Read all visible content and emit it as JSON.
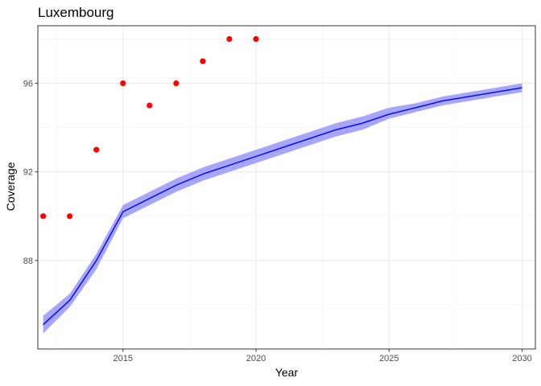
{
  "chart_data": {
    "type": "line",
    "title": "Luxembourg",
    "xlabel": "Year",
    "ylabel": "Coverage",
    "xlim": [
      2011.8,
      2030.5
    ],
    "ylim": [
      84.0,
      98.6
    ],
    "x_ticks": [
      2015,
      2020,
      2025,
      2030
    ],
    "y_ticks": [
      88,
      92,
      96
    ],
    "grid": true,
    "colors": {
      "line": "#0000ff",
      "ribbon": "#a6a6ff",
      "points": "#ff0000"
    },
    "series": [
      {
        "type": "line",
        "x": [
          2012,
          2013,
          2014,
          2015,
          2016,
          2017,
          2018,
          2019,
          2020,
          2021,
          2022,
          2023,
          2024,
          2025,
          2026,
          2027,
          2028,
          2029,
          2030
        ],
        "y": [
          85.1,
          86.2,
          88.0,
          90.2,
          90.8,
          91.4,
          91.9,
          92.3,
          92.7,
          93.1,
          93.5,
          93.9,
          94.2,
          94.6,
          94.9,
          95.2,
          95.4,
          95.6,
          95.8
        ],
        "lower": [
          84.7,
          85.9,
          87.6,
          89.9,
          90.5,
          91.1,
          91.6,
          92.0,
          92.4,
          92.8,
          93.2,
          93.6,
          93.9,
          94.4,
          94.7,
          95.0,
          95.2,
          95.4,
          95.6
        ],
        "upper": [
          85.5,
          86.5,
          88.3,
          90.5,
          91.1,
          91.7,
          92.2,
          92.6,
          93.0,
          93.4,
          93.8,
          94.2,
          94.5,
          94.9,
          95.1,
          95.4,
          95.6,
          95.8,
          96.0
        ]
      },
      {
        "type": "scatter",
        "x": [
          2012,
          2013,
          2014,
          2015,
          2016,
          2017,
          2018,
          2019,
          2020
        ],
        "y": [
          90,
          90,
          93,
          96,
          95,
          96,
          97,
          98,
          98
        ]
      }
    ]
  }
}
